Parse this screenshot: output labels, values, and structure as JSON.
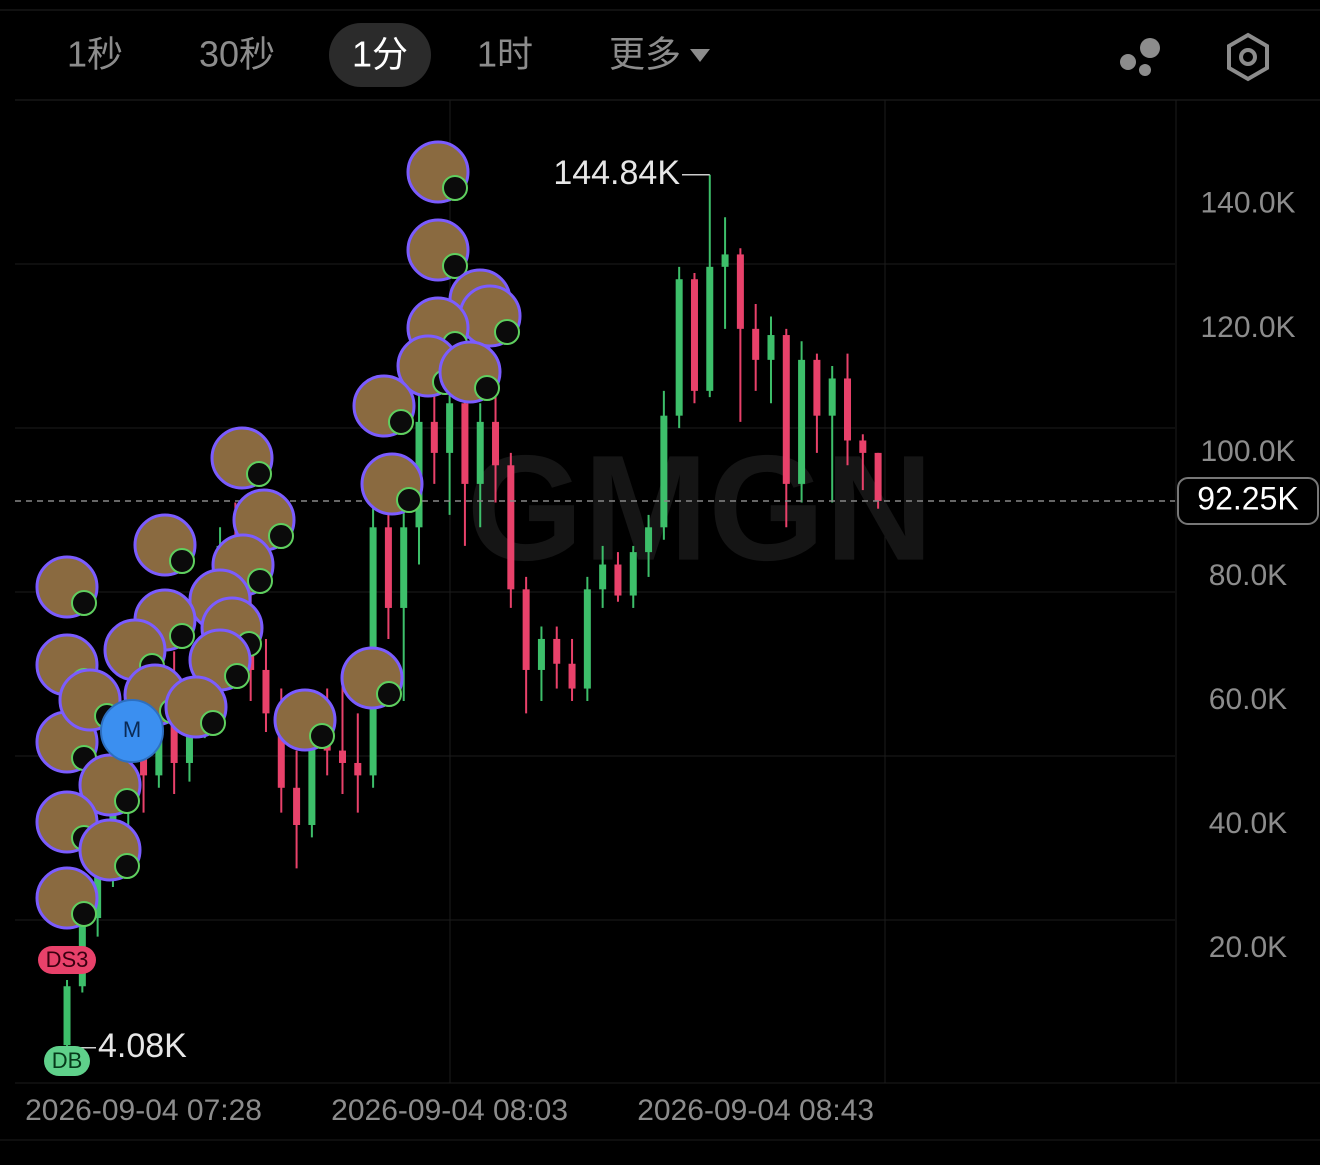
{
  "toolbar": {
    "tabs": [
      "1秒",
      "30秒",
      "1分",
      "1时",
      "更多"
    ],
    "active": "1分"
  },
  "chart_data": {
    "type": "candlestick",
    "watermark": "GMGN",
    "open": [
      4.5,
      14,
      25,
      32,
      45,
      55,
      48,
      60,
      50,
      58,
      68,
      85,
      75,
      65,
      58,
      46,
      40,
      55,
      52,
      50,
      48,
      88,
      75,
      88,
      105,
      100,
      108,
      95,
      105,
      98,
      78,
      65,
      70,
      66,
      62,
      78,
      82,
      77,
      84,
      88,
      106,
      128,
      110,
      130,
      132,
      120,
      115,
      119,
      95,
      115,
      106,
      112,
      102,
      100
    ],
    "high": [
      15,
      26,
      35,
      48,
      62,
      58,
      65,
      68,
      62,
      72,
      88,
      92,
      88,
      70,
      62,
      52,
      58,
      62,
      65,
      58,
      92,
      90,
      92,
      110,
      113,
      112,
      110,
      108,
      110,
      100,
      80,
      72,
      72,
      70,
      80,
      85,
      84,
      85,
      90,
      110,
      130,
      129,
      144.84,
      138,
      133,
      124,
      122,
      120,
      118,
      116,
      114,
      116,
      103,
      100
    ],
    "low": [
      4.08,
      13,
      22,
      30,
      40,
      42,
      46,
      45,
      47,
      54,
      64,
      70,
      60,
      55,
      42,
      33,
      38,
      48,
      45,
      42,
      46,
      70,
      60,
      82,
      95,
      90,
      85,
      88,
      92,
      75,
      58,
      60,
      62,
      60,
      60,
      75,
      76,
      75,
      80,
      86,
      104,
      108,
      109,
      120,
      105,
      110,
      108,
      88,
      92,
      100,
      92,
      98,
      94,
      91
    ],
    "close": [
      14,
      25,
      32,
      45,
      55,
      48,
      60,
      50,
      58,
      68,
      85,
      75,
      65,
      58,
      46,
      40,
      55,
      52,
      50,
      48,
      88,
      75,
      88,
      105,
      100,
      108,
      95,
      105,
      98,
      78,
      65,
      70,
      66,
      62,
      78,
      82,
      77,
      84,
      88,
      106,
      128,
      110,
      130,
      132,
      120,
      115,
      119,
      95,
      115,
      106,
      112,
      102,
      100,
      92.25
    ],
    "up_color": "#3dbf6a",
    "down_color": "#e8416a",
    "xlim": [
      -3.4,
      72.4
    ],
    "xticks": [
      {
        "value": 5,
        "label": "2026-09-04 07:28"
      },
      {
        "value": 25,
        "label": "2026-09-04 08:03"
      },
      {
        "value": 45,
        "label": "2026-09-04 08:43"
      }
    ],
    "ylim": [
      -1.6,
      156.9
    ],
    "yticks": [
      {
        "value": 140,
        "label": "140.0K"
      },
      {
        "value": 120,
        "label": "120.0K"
      },
      {
        "value": 100,
        "label": "100.0K"
      },
      {
        "value": 80,
        "label": "80.0K"
      },
      {
        "value": 60,
        "label": "60.0K"
      },
      {
        "value": 40,
        "label": "40.0K"
      },
      {
        "value": 20,
        "label": "20.0K"
      }
    ],
    "current_price": {
      "value": 92.25,
      "label": "92.25K"
    },
    "high_label": {
      "value": 144.84,
      "label": "144.84K"
    },
    "low_label": {
      "value": 4.08,
      "label": "4.08K"
    },
    "markers": [
      "DS3",
      "DB",
      "M"
    ]
  }
}
